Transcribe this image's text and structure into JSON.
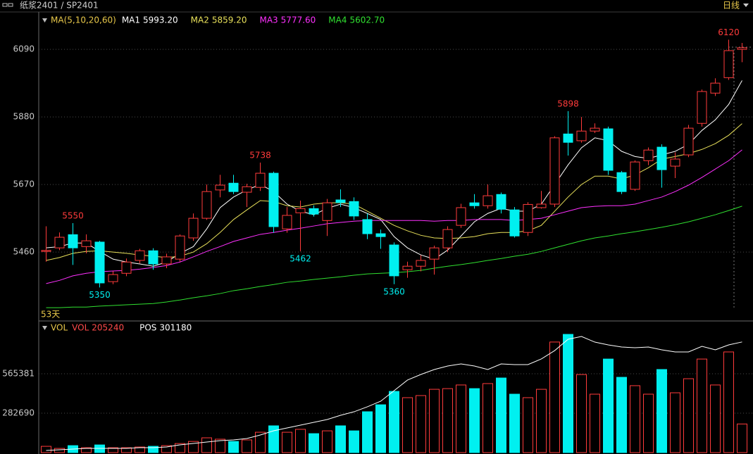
{
  "header": {
    "title": "纸浆2401 / SP2401",
    "period": "日线"
  },
  "chart_data": [
    {
      "type": "candlestick",
      "legend_title": "MA(5,10,20,60)",
      "legend_color": "#e8c84a",
      "open": [
        5462,
        5473,
        5514,
        5477,
        5491,
        5368,
        5394,
        5434,
        5464,
        5423,
        5438,
        5504,
        5565,
        5653,
        5674,
        5646,
        5661,
        5705,
        5532,
        5582,
        5595,
        5558,
        5622,
        5617,
        5561,
        5517,
        5482,
        5405,
        5416,
        5438,
        5473,
        5543,
        5613,
        5604,
        5639,
        5591,
        5521,
        5598,
        5609,
        5827,
        5806,
        5836,
        5843,
        5707,
        5655,
        5744,
        5786,
        5727,
        5762,
        5860,
        5954,
        6002,
        6090
      ],
      "high": [
        5540,
        5521,
        5550,
        5515,
        5495,
        5400,
        5440,
        5470,
        5472,
        5455,
        5515,
        5580,
        5670,
        5700,
        5700,
        5672,
        5738,
        5710,
        5600,
        5620,
        5605,
        5625,
        5655,
        5630,
        5580,
        5530,
        5490,
        5430,
        5450,
        5480,
        5540,
        5610,
        5640,
        5670,
        5645,
        5600,
        5615,
        5650,
        5820,
        5898,
        5880,
        5860,
        5850,
        5712,
        5745,
        5785,
        5795,
        5770,
        5855,
        5965,
        6000,
        6120,
        6110
      ],
      "low": [
        5430,
        5466,
        5420,
        5456,
        5350,
        5360,
        5385,
        5425,
        5405,
        5410,
        5430,
        5495,
        5560,
        5630,
        5640,
        5600,
        5650,
        5520,
        5520,
        5462,
        5570,
        5510,
        5600,
        5560,
        5500,
        5470,
        5360,
        5380,
        5400,
        5390,
        5460,
        5535,
        5595,
        5595,
        5580,
        5505,
        5510,
        5595,
        5600,
        5760,
        5800,
        5830,
        5700,
        5640,
        5650,
        5730,
        5660,
        5690,
        5755,
        5850,
        5945,
        5995,
        6050
      ],
      "close": [
        5465,
        5506,
        5473,
        5495,
        5364,
        5390,
        5429,
        5464,
        5423,
        5445,
        5510,
        5565,
        5648,
        5668,
        5648,
        5663,
        5705,
        5539,
        5574,
        5595,
        5578,
        5613,
        5614,
        5572,
        5517,
        5508,
        5386,
        5416,
        5434,
        5473,
        5530,
        5598,
        5604,
        5635,
        5593,
        5510,
        5608,
        5609,
        5815,
        5801,
        5836,
        5845,
        5714,
        5648,
        5740,
        5777,
        5716,
        5749,
        5845,
        5959,
        5985,
        6086,
        6095
      ],
      "up_color": "#ff3b3b",
      "down_color": "#00f0f0",
      "series": [
        {
          "name": "MA1",
          "color": "#ffffff",
          "last_label": "5993.20",
          "values": [
            5473,
            5477,
            5488,
            5488,
            5462,
            5438,
            5429,
            5423,
            5416,
            5429,
            5456,
            5477,
            5532,
            5598,
            5631,
            5653,
            5670,
            5648,
            5609,
            5587,
            5576,
            5596,
            5609,
            5598,
            5580,
            5561,
            5508,
            5473,
            5451,
            5438,
            5466,
            5510,
            5554,
            5580,
            5596,
            5587,
            5587,
            5609,
            5670,
            5731,
            5784,
            5815,
            5806,
            5773,
            5757,
            5751,
            5762,
            5773,
            5795,
            5838,
            5871,
            5919,
            5993.2
          ]
        },
        {
          "name": "MA2",
          "color": "#e8e05a",
          "last_label": "5859.20",
          "values": [
            5434,
            5443,
            5456,
            5462,
            5464,
            5460,
            5456,
            5451,
            5447,
            5443,
            5447,
            5460,
            5486,
            5521,
            5561,
            5591,
            5620,
            5617,
            5604,
            5600,
            5609,
            5613,
            5613,
            5609,
            5587,
            5565,
            5543,
            5526,
            5512,
            5504,
            5502,
            5504,
            5508,
            5517,
            5521,
            5521,
            5526,
            5543,
            5587,
            5631,
            5670,
            5696,
            5696,
            5687,
            5700,
            5722,
            5749,
            5757,
            5766,
            5779,
            5797,
            5823,
            5859.2
          ]
        },
        {
          "name": "MA3",
          "color": "#ff30ff",
          "last_label": "5777.60",
          "values": [
            5362,
            5372,
            5386,
            5394,
            5399,
            5401,
            5403,
            5407,
            5412,
            5418,
            5429,
            5445,
            5462,
            5477,
            5493,
            5504,
            5515,
            5521,
            5528,
            5534,
            5541,
            5548,
            5552,
            5556,
            5558,
            5558,
            5558,
            5558,
            5558,
            5556,
            5558,
            5558,
            5561,
            5561,
            5561,
            5558,
            5561,
            5565,
            5576,
            5587,
            5598,
            5602,
            5604,
            5604,
            5609,
            5620,
            5631,
            5648,
            5668,
            5692,
            5718,
            5744,
            5777.6
          ]
        },
        {
          "name": "MA4",
          "color": "#30e030",
          "last_label": "5602.70",
          "values": [
            5287,
            5287,
            5289,
            5289,
            5292,
            5294,
            5296,
            5298,
            5300,
            5305,
            5311,
            5318,
            5324,
            5331,
            5340,
            5346,
            5353,
            5359,
            5366,
            5370,
            5375,
            5379,
            5383,
            5388,
            5392,
            5394,
            5396,
            5399,
            5403,
            5410,
            5416,
            5421,
            5427,
            5434,
            5440,
            5447,
            5453,
            5462,
            5473,
            5484,
            5495,
            5504,
            5510,
            5517,
            5523,
            5530,
            5537,
            5545,
            5554,
            5565,
            5576,
            5589,
            5602.7
          ]
        }
      ],
      "high_labels": [
        2,
        16,
        39,
        51
      ],
      "low_labels": [
        4,
        19,
        26
      ],
      "annotation": "53天",
      "ylim": [
        5248,
        6204
      ],
      "yticks": [
        6090,
        5880,
        5670,
        5460
      ],
      "grid": true
    },
    {
      "type": "volume",
      "legend_title": "VOL",
      "legend_color": "#e8c84a",
      "series": [
        {
          "name": "VOL",
          "color": "#ff4a4a",
          "values": [
            45000,
            30000,
            50000,
            35000,
            55000,
            35000,
            35000,
            40000,
            45000,
            50000,
            65000,
            80000,
            106000,
            96000,
            80000,
            91000,
            146000,
            192000,
            146000,
            167000,
            136000,
            156000,
            192000,
            156000,
            293000,
            343000,
            439000,
            394000,
            409000,
            454000,
            459000,
            485000,
            459000,
            495000,
            535000,
            419000,
            394000,
            454000,
            793000,
            848000,
            560000,
            419000,
            671000,
            540000,
            480000,
            419000,
            596000,
            429000,
            530000,
            671000,
            485000,
            722000,
            205240
          ]
        },
        {
          "name": "POS",
          "color": "#ffffff",
          "axis": "y2",
          "values": [
            113600,
            114900,
            116100,
            117300,
            117300,
            117300,
            117300,
            118500,
            118500,
            119700,
            123400,
            125800,
            128200,
            130700,
            131900,
            134300,
            140400,
            147700,
            152600,
            157400,
            162300,
            167200,
            174500,
            180500,
            189100,
            198800,
            217000,
            235300,
            245000,
            253500,
            259600,
            263200,
            259600,
            253500,
            263200,
            262000,
            262000,
            271800,
            286300,
            305800,
            310700,
            300900,
            296100,
            292400,
            291200,
            292400,
            287600,
            283900,
            283900,
            293600,
            287600,
            296100,
            301180
          ]
        }
      ],
      "ylim": [
        0,
        934000
      ],
      "yticks": [
        565381,
        282690
      ],
      "y2lim": [
        110000,
        335000
      ],
      "grid": true
    }
  ]
}
